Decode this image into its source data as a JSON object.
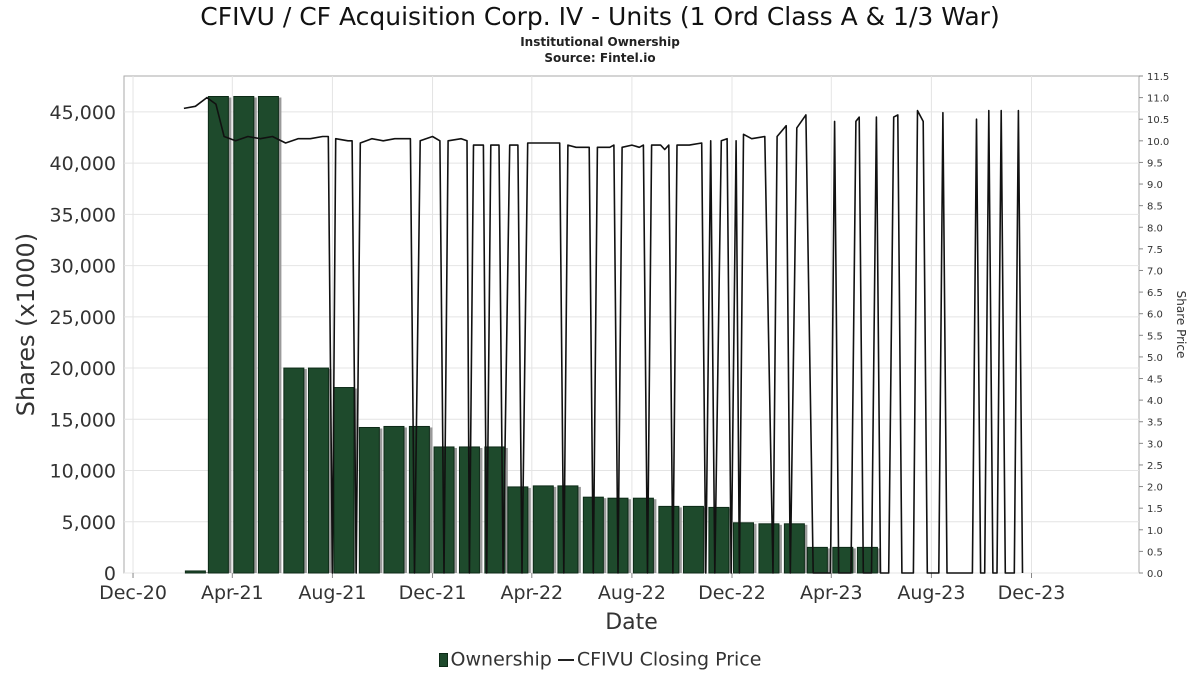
{
  "chart_data": {
    "type": "bar",
    "title": "CFIVU / CF Acquisition Corp. IV - Units (1 Ord Class A & 1/3 War)",
    "subtitle": "Institutional Ownership",
    "source": "Source: Fintel.io",
    "xlabel": "Date",
    "ylabel": "Shares (x1000)",
    "y2label": "Share Price",
    "ylim": [
      0,
      48500
    ],
    "y2lim": [
      0,
      11.5
    ],
    "xlim": [
      "2020-11-20",
      "2024-04-10"
    ],
    "x_ticks": [
      {
        "label": "Dec-20",
        "date": "2020-12-01"
      },
      {
        "label": "Apr-21",
        "date": "2021-04-01"
      },
      {
        "label": "Aug-21",
        "date": "2021-08-01"
      },
      {
        "label": "Dec-21",
        "date": "2021-12-01"
      },
      {
        "label": "Apr-22",
        "date": "2022-04-01"
      },
      {
        "label": "Aug-22",
        "date": "2022-08-01"
      },
      {
        "label": "Dec-22",
        "date": "2022-12-01"
      },
      {
        "label": "Apr-23",
        "date": "2023-04-01"
      },
      {
        "label": "Aug-23",
        "date": "2023-08-01"
      },
      {
        "label": "Dec-23",
        "date": "2023-12-01"
      }
    ],
    "y_ticks": [
      "0",
      "5,000",
      "10,000",
      "15,000",
      "20,000",
      "25,000",
      "30,000",
      "35,000",
      "40,000",
      "45,000"
    ],
    "y_tick_values": [
      0,
      5000,
      10000,
      15000,
      20000,
      25000,
      30000,
      35000,
      40000,
      45000
    ],
    "y2_ticks": [
      "0.0",
      "0.5",
      "1.0",
      "1.5",
      "2.0",
      "2.5",
      "3.0",
      "3.5",
      "4.0",
      "4.5",
      "5.0",
      "5.5",
      "6.0",
      "6.5",
      "7.0",
      "7.5",
      "8.0",
      "8.5",
      "9.0",
      "9.5",
      "10.0",
      "10.5",
      "11.0",
      "11.5"
    ],
    "y2_tick_values": [
      0,
      0.5,
      1,
      1.5,
      2,
      2.5,
      3,
      3.5,
      4,
      4.5,
      5,
      5.5,
      6,
      6.5,
      7,
      7.5,
      8,
      8.5,
      9,
      9.5,
      10,
      10.5,
      11,
      11.5
    ],
    "grid": true,
    "legend_position": "bottom",
    "colors": {
      "bar": "#1e4a2c",
      "bar_edge": "#0d2a17",
      "bar_shadow": "#9a9a9a",
      "line": "#111111",
      "grid": "#e4e4e4"
    },
    "series": [
      {
        "name": "Ownership",
        "type": "bar",
        "x": [
          "2021-02-15",
          "2021-03-15",
          "2021-04-15",
          "2021-05-15",
          "2021-06-15",
          "2021-07-15",
          "2021-08-15",
          "2021-09-15",
          "2021-10-15",
          "2021-11-15",
          "2021-12-15",
          "2022-01-15",
          "2022-02-15",
          "2022-03-15",
          "2022-04-15",
          "2022-05-15",
          "2022-06-15",
          "2022-07-15",
          "2022-08-15",
          "2022-09-15",
          "2022-10-15",
          "2022-11-15",
          "2022-12-15",
          "2023-01-15",
          "2023-02-15",
          "2023-03-15",
          "2023-04-15",
          "2023-05-15",
          "2023-06-15"
        ],
        "values": [
          200,
          46500,
          46500,
          46500,
          20000,
          20000,
          18100,
          14200,
          14300,
          14300,
          12300,
          12300,
          12300,
          8400,
          8500,
          8500,
          7400,
          7300,
          7300,
          6500,
          6500,
          6400,
          4900,
          4800,
          4800,
          2500,
          2500,
          2500,
          0
        ]
      },
      {
        "name": "CFIVU Closing Price",
        "type": "line",
        "points": [
          [
            "2021-02-01",
            10.75
          ],
          [
            "2021-02-15",
            10.8
          ],
          [
            "2021-03-01",
            11.0
          ],
          [
            "2021-03-12",
            10.85
          ],
          [
            "2021-03-22",
            10.1
          ],
          [
            "2021-04-05",
            10.0
          ],
          [
            "2021-04-20",
            10.1
          ],
          [
            "2021-05-05",
            10.05
          ],
          [
            "2021-05-20",
            10.1
          ],
          [
            "2021-06-05",
            9.95
          ],
          [
            "2021-06-20",
            10.05
          ],
          [
            "2021-07-05",
            10.05
          ],
          [
            "2021-07-20",
            10.1
          ],
          [
            "2021-07-27",
            10.1
          ],
          [
            "2021-08-01",
            0
          ],
          [
            "2021-08-05",
            10.05
          ],
          [
            "2021-08-20",
            10.0
          ],
          [
            "2021-08-25",
            10.0
          ],
          [
            "2021-08-30",
            0
          ],
          [
            "2021-09-04",
            9.95
          ],
          [
            "2021-09-18",
            10.05
          ],
          [
            "2021-10-02",
            10.0
          ],
          [
            "2021-10-16",
            10.05
          ],
          [
            "2021-10-30",
            10.05
          ],
          [
            "2021-11-04",
            10.05
          ],
          [
            "2021-11-09",
            0
          ],
          [
            "2021-11-16",
            10.0
          ],
          [
            "2021-12-01",
            10.1
          ],
          [
            "2021-12-10",
            10.0
          ],
          [
            "2021-12-15",
            0
          ],
          [
            "2021-12-20",
            10.0
          ],
          [
            "2022-01-05",
            10.05
          ],
          [
            "2022-01-12",
            10.0
          ],
          [
            "2022-01-15",
            0
          ],
          [
            "2022-01-20",
            9.9
          ],
          [
            "2022-02-01",
            9.9
          ],
          [
            "2022-02-05",
            0
          ],
          [
            "2022-02-10",
            9.9
          ],
          [
            "2022-02-20",
            9.9
          ],
          [
            "2022-02-25",
            0
          ],
          [
            "2022-03-05",
            9.9
          ],
          [
            "2022-03-15",
            9.9
          ],
          [
            "2022-03-20",
            0
          ],
          [
            "2022-03-27",
            9.95
          ],
          [
            "2022-04-20",
            9.95
          ],
          [
            "2022-05-05",
            9.95
          ],
          [
            "2022-05-10",
            0
          ],
          [
            "2022-05-15",
            9.9
          ],
          [
            "2022-05-25",
            9.85
          ],
          [
            "2022-06-10",
            9.85
          ],
          [
            "2022-06-15",
            0
          ],
          [
            "2022-06-20",
            9.85
          ],
          [
            "2022-07-05",
            9.85
          ],
          [
            "2022-07-10",
            9.9
          ],
          [
            "2022-07-15",
            0
          ],
          [
            "2022-07-20",
            9.85
          ],
          [
            "2022-08-01",
            9.9
          ],
          [
            "2022-08-10",
            9.85
          ],
          [
            "2022-08-15",
            9.9
          ],
          [
            "2022-08-20",
            0
          ],
          [
            "2022-08-25",
            9.9
          ],
          [
            "2022-09-05",
            9.9
          ],
          [
            "2022-09-10",
            9.8
          ],
          [
            "2022-09-15",
            9.9
          ],
          [
            "2022-09-20",
            0
          ],
          [
            "2022-09-25",
            9.9
          ],
          [
            "2022-10-10",
            9.9
          ],
          [
            "2022-10-25",
            9.95
          ],
          [
            "2022-10-30",
            0
          ],
          [
            "2022-11-05",
            10.0
          ],
          [
            "2022-11-10",
            0
          ],
          [
            "2022-11-18",
            10.0
          ],
          [
            "2022-11-25",
            10.05
          ],
          [
            "2022-11-30",
            0
          ],
          [
            "2022-12-06",
            10.0
          ],
          [
            "2022-12-10",
            0
          ],
          [
            "2022-12-15",
            10.15
          ],
          [
            "2022-12-25",
            10.05
          ],
          [
            "2023-01-10",
            10.1
          ],
          [
            "2023-01-20",
            0
          ],
          [
            "2023-01-25",
            10.1
          ],
          [
            "2023-02-05",
            10.35
          ],
          [
            "2023-02-10",
            0
          ],
          [
            "2023-02-18",
            10.3
          ],
          [
            "2023-03-01",
            10.6
          ],
          [
            "2023-03-10",
            0
          ],
          [
            "2023-03-31",
            0
          ],
          [
            "2023-04-05",
            10.45
          ],
          [
            "2023-04-10",
            0
          ],
          [
            "2023-04-25",
            0
          ],
          [
            "2023-05-01",
            10.45
          ],
          [
            "2023-05-05",
            10.55
          ],
          [
            "2023-05-10",
            0
          ],
          [
            "2023-05-20",
            0
          ],
          [
            "2023-05-26",
            10.55
          ],
          [
            "2023-05-31",
            0
          ],
          [
            "2023-06-10",
            0
          ],
          [
            "2023-06-16",
            10.55
          ],
          [
            "2023-06-21",
            10.6
          ],
          [
            "2023-06-26",
            0
          ],
          [
            "2023-07-10",
            0
          ],
          [
            "2023-07-15",
            10.7
          ],
          [
            "2023-07-22",
            10.45
          ],
          [
            "2023-07-27",
            0
          ],
          [
            "2023-08-10",
            0
          ],
          [
            "2023-08-15",
            10.65
          ],
          [
            "2023-08-20",
            0
          ],
          [
            "2023-09-20",
            0
          ],
          [
            "2023-09-25",
            10.5
          ],
          [
            "2023-09-30",
            0
          ],
          [
            "2023-10-05",
            0
          ],
          [
            "2023-10-10",
            10.7
          ],
          [
            "2023-10-15",
            0
          ],
          [
            "2023-10-20",
            0
          ],
          [
            "2023-10-25",
            10.7
          ],
          [
            "2023-10-30",
            0
          ],
          [
            "2023-11-10",
            0
          ],
          [
            "2023-11-15",
            10.7
          ],
          [
            "2023-11-20",
            0
          ]
        ]
      }
    ]
  }
}
